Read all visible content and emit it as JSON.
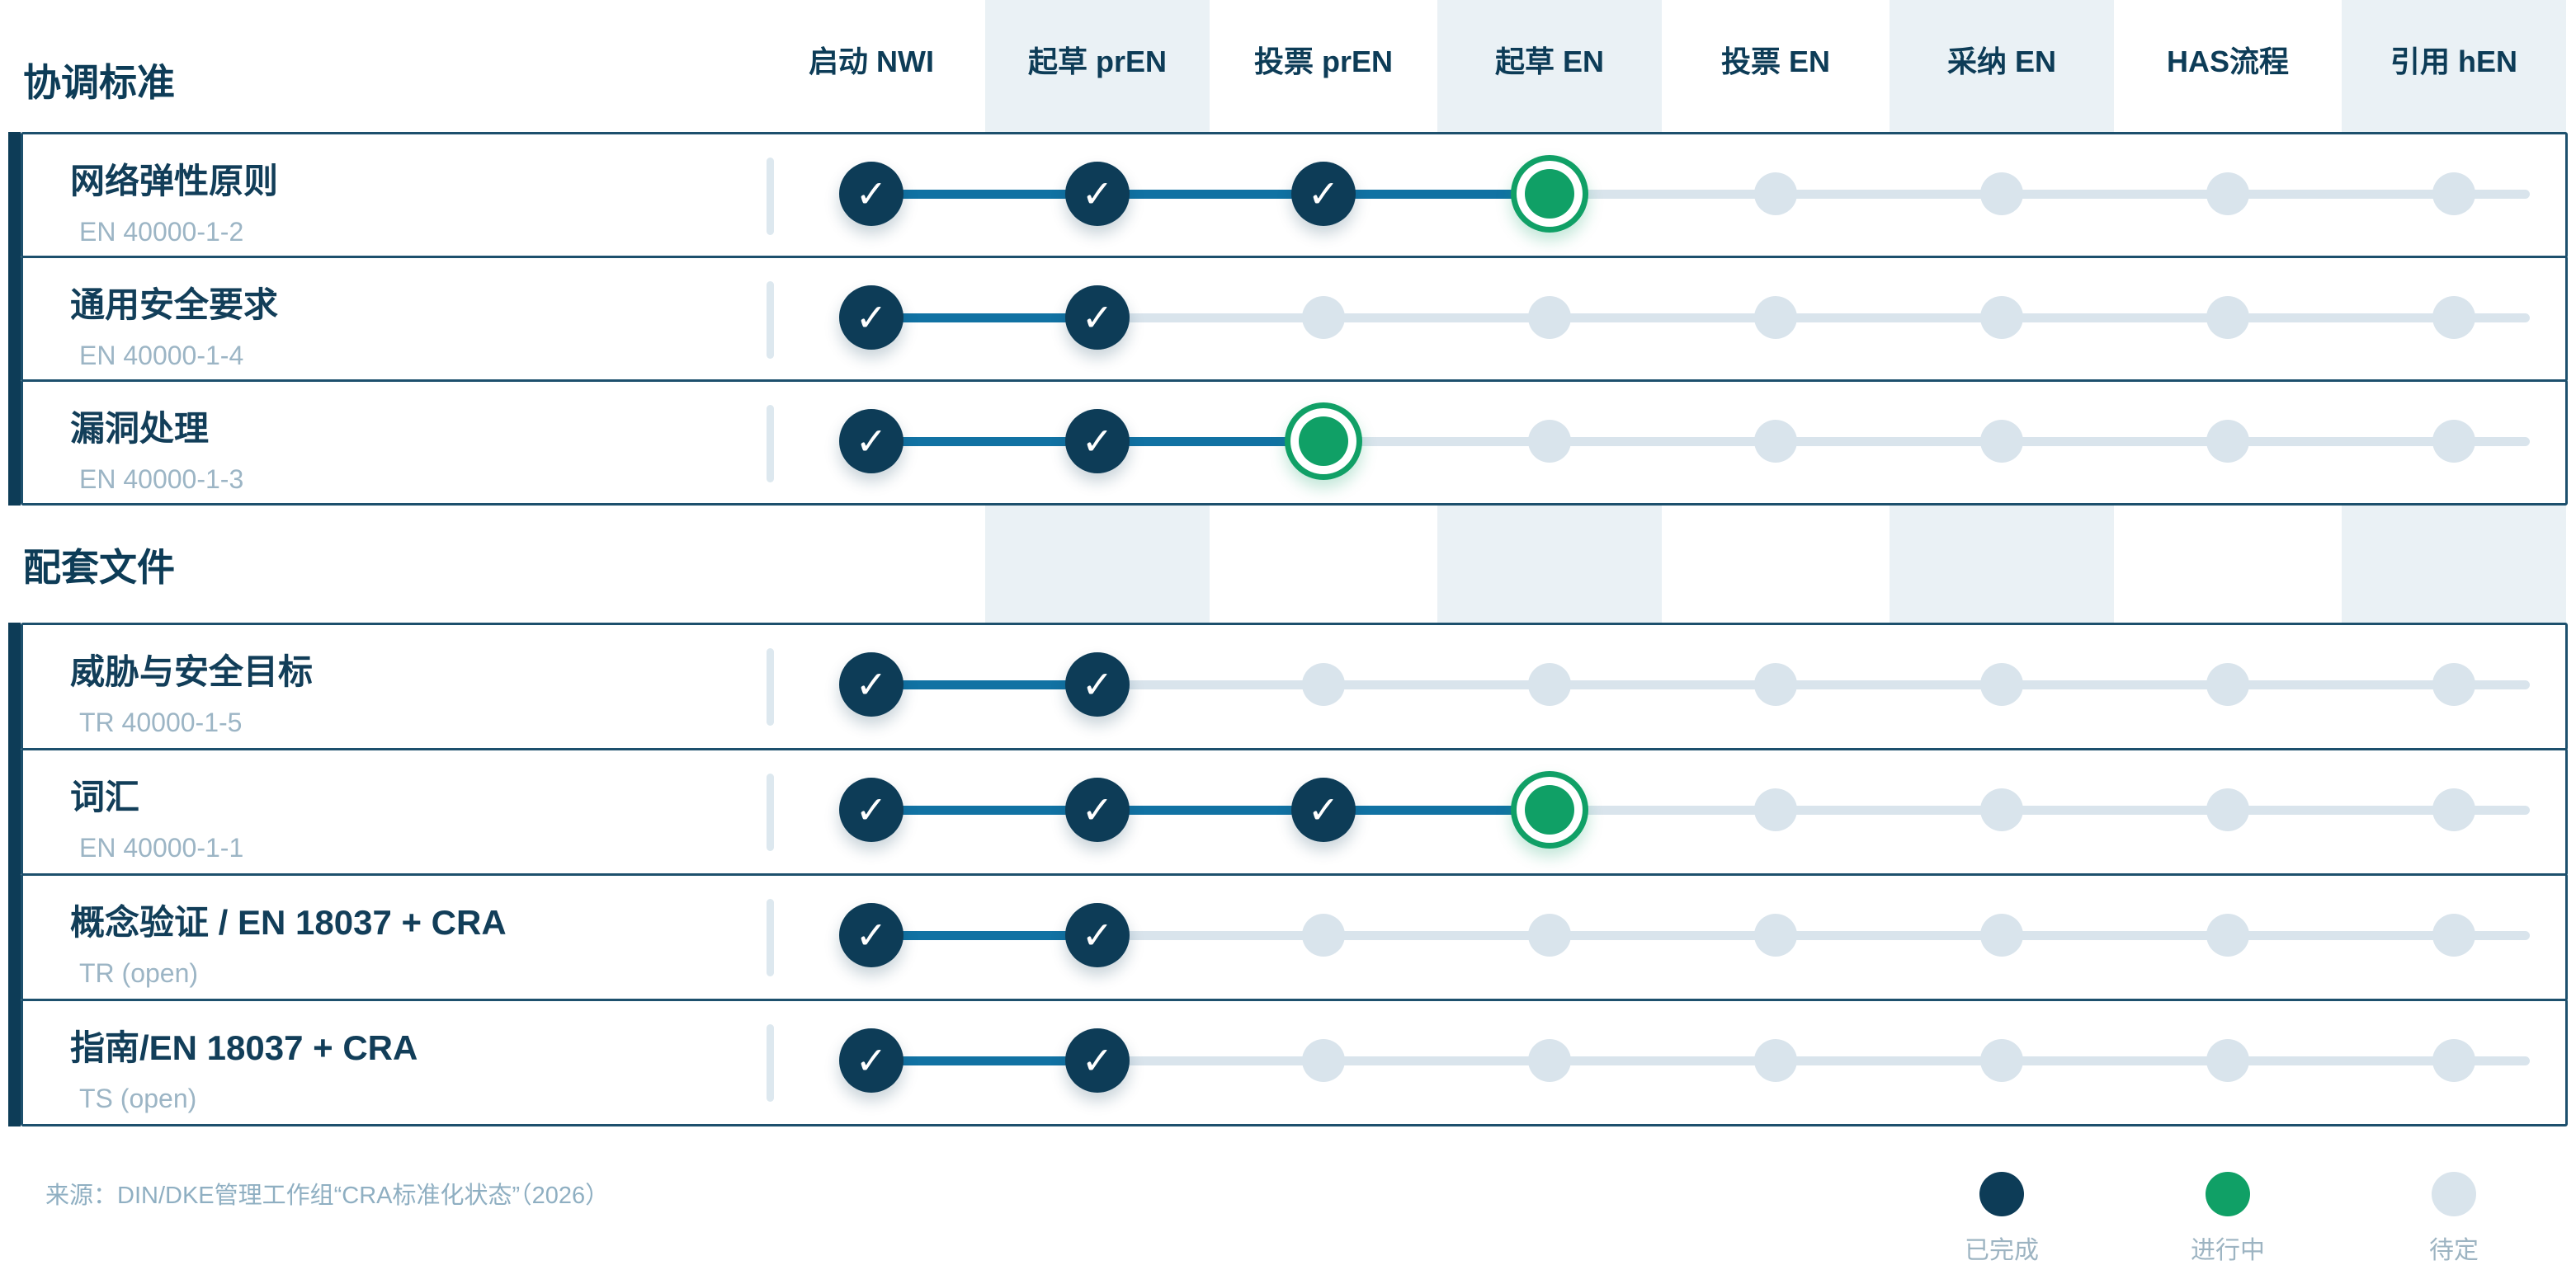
{
  "palette": {
    "navy": "#0d3c57",
    "blue": "#1172a3",
    "green": "#10a066",
    "pending_gray": "#d9e4ec",
    "stripe": "#eaf1f5",
    "card_border": "#1d506d",
    "subtext": "#9cb5c5",
    "muted_text": "#8fafc2"
  },
  "icons": {
    "check": "✓",
    "legend_done_dot": "filled-circle",
    "legend_inprogress_dot": "filled-circle",
    "legend_pending_dot": "filled-circle"
  },
  "stages": [
    {
      "label": "启动 NWI",
      "banded": false
    },
    {
      "label": "起草 prEN",
      "banded": true
    },
    {
      "label": "投票 prEN",
      "banded": false
    },
    {
      "label": "起草 EN",
      "banded": true
    },
    {
      "label": "投票 EN",
      "banded": false
    },
    {
      "label": "采纳 EN",
      "banded": true
    },
    {
      "label": "HAS流程",
      "banded": false
    },
    {
      "label": "引用 hEN",
      "banded": true
    }
  ],
  "sections": [
    {
      "title": "协调标准",
      "rows": [
        {
          "title": "网络弹性原则",
          "code": "EN 40000-1-2",
          "states": [
            "done",
            "done",
            "done",
            "inprogress",
            "pending",
            "pending",
            "pending",
            "pending"
          ]
        },
        {
          "title": "通用安全要求",
          "code": "EN 40000-1-4",
          "states": [
            "done",
            "done",
            "pending",
            "pending",
            "pending",
            "pending",
            "pending",
            "pending"
          ]
        },
        {
          "title": "漏洞处理",
          "code": "EN 40000-1-3",
          "states": [
            "done",
            "done",
            "inprogress",
            "pending",
            "pending",
            "pending",
            "pending",
            "pending"
          ]
        }
      ]
    },
    {
      "title": "配套文件",
      "rows": [
        {
          "title": "威胁与安全目标",
          "code": "TR 40000-1-5",
          "states": [
            "done",
            "done",
            "pending",
            "pending",
            "pending",
            "pending",
            "pending",
            "pending"
          ]
        },
        {
          "title": "词汇",
          "code": "EN 40000-1-1",
          "states": [
            "done",
            "done",
            "done",
            "inprogress",
            "pending",
            "pending",
            "pending",
            "pending"
          ]
        },
        {
          "title": "概念验证 / EN 18037 + CRA",
          "code": "TR (open)",
          "states": [
            "done",
            "done",
            "pending",
            "pending",
            "pending",
            "pending",
            "pending",
            "pending"
          ]
        },
        {
          "title": "指南/EN 18037 + CRA",
          "code": "TS (open)",
          "states": [
            "done",
            "done",
            "pending",
            "pending",
            "pending",
            "pending",
            "pending",
            "pending"
          ]
        }
      ]
    }
  ],
  "source": "来源：DIN/DKE管理工作组“CRA标准化状态”（2026）",
  "legend": [
    {
      "label": "已完成",
      "state": "done"
    },
    {
      "label": "进行中",
      "state": "inprogress"
    },
    {
      "label": "待定",
      "state": "pending"
    }
  ]
}
